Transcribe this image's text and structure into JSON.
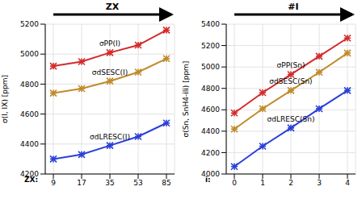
{
  "chart_data": [
    {
      "type": "line",
      "title": "ZX",
      "x_label": "ZX:",
      "y_label": "σ(I, IX) [ppm]",
      "categories": [
        9,
        17,
        35,
        53,
        85
      ],
      "ylim": [
        4200,
        5200
      ],
      "yticks": [
        4200,
        4400,
        4600,
        4800,
        5000,
        5200
      ],
      "grid": true,
      "series": [
        {
          "name": "σPP(I)",
          "color": "#d42a2a",
          "marker": "star",
          "values": [
            4920,
            4950,
            5010,
            5060,
            5160
          ]
        },
        {
          "name": "σdSESC(I)",
          "color": "#c08a2a",
          "marker": "star",
          "values": [
            4740,
            4770,
            4820,
            4880,
            4970
          ]
        },
        {
          "name": "σdLRESC(I)",
          "color": "#2a3fd8",
          "marker": "star",
          "values": [
            4300,
            4330,
            4390,
            4450,
            4540
          ]
        }
      ]
    },
    {
      "type": "line",
      "title": "#I",
      "x_label": "i:",
      "y_label": "σ(Sn, SnH4-iIi) [ppm]",
      "categories": [
        0,
        1,
        2,
        3,
        4
      ],
      "ylim": [
        4000,
        5400
      ],
      "yticks": [
        4000,
        4200,
        4400,
        4600,
        4800,
        5000,
        5200,
        5400
      ],
      "grid": true,
      "series": [
        {
          "name": "σPP(Sn)",
          "color": "#d42a2a",
          "marker": "star",
          "values": [
            4570,
            4760,
            4930,
            5100,
            5270
          ]
        },
        {
          "name": "σdSESC(Sn)",
          "color": "#c08a2a",
          "marker": "star",
          "values": [
            4420,
            4610,
            4780,
            4950,
            5130
          ]
        },
        {
          "name": "σdLRESC(Sn)",
          "color": "#2a3fd8",
          "marker": "star",
          "values": [
            4070,
            4260,
            4430,
            4610,
            4780
          ]
        }
      ]
    }
  ]
}
